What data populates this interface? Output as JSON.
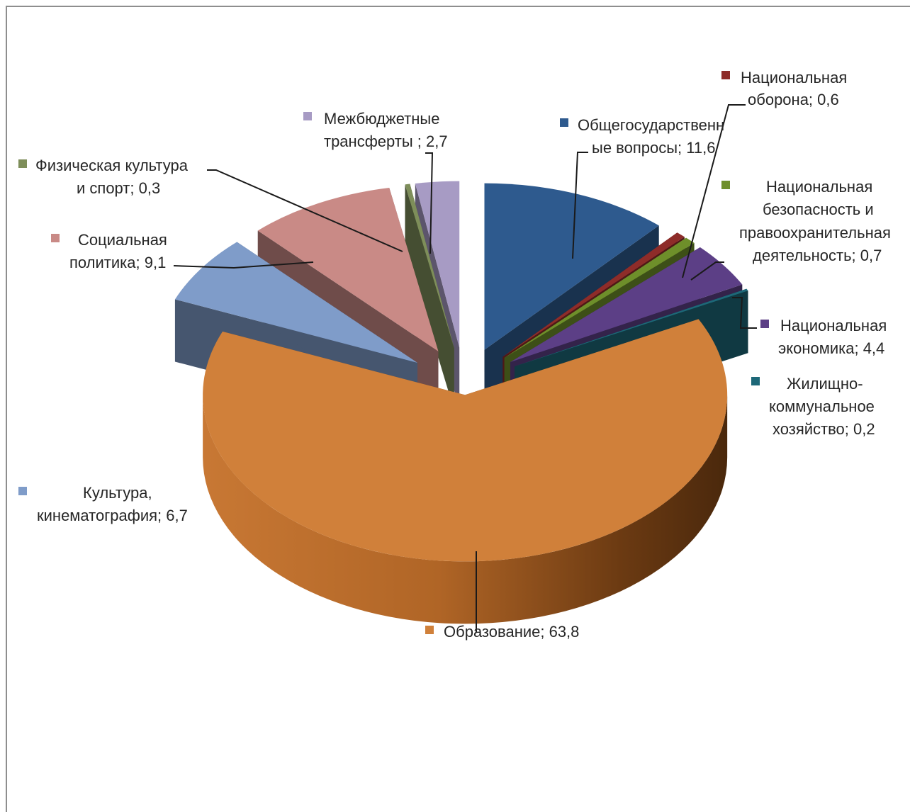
{
  "chart_data": {
    "type": "pie",
    "style": "3d-exploded",
    "legend": "none",
    "data_labels": "category; value",
    "slices": [
      {
        "name": "Общегосударственные вопросы",
        "value": 11.6,
        "label_lines": [
          "Общегосударственн",
          "ые вопросы; 11,6"
        ],
        "color": "#2E5A8E"
      },
      {
        "name": "Национальная оборона",
        "value": 0.6,
        "label_lines": [
          "Национальная",
          "оборона; 0,6"
        ],
        "color": "#8E2C29"
      },
      {
        "name": "Национальная безопасность и правоохранительная деятельность",
        "value": 0.7,
        "label_lines": [
          "Национальная",
          "безопасность и",
          "правоохранительная",
          "деятельность; 0,7"
        ],
        "color": "#6E8F2A"
      },
      {
        "name": "Национальная экономика",
        "value": 4.4,
        "label_lines": [
          "Национальная",
          "экономика; 4,4"
        ],
        "color": "#5C3F86"
      },
      {
        "name": "Жилищно-коммунальное хозяйство",
        "value": 0.2,
        "label_lines": [
          "Жилищно-",
          "коммунальное",
          "хозяйство; 0,2"
        ],
        "color": "#1D6878"
      },
      {
        "name": "Образование",
        "value": 63.8,
        "label_lines": [
          "Образование; 63,8"
        ],
        "color": "#D0803A"
      },
      {
        "name": "Культура, кинематография",
        "value": 6.7,
        "label_lines": [
          "Культура,",
          "кинематография; 6,7"
        ],
        "color": "#7F9CC9"
      },
      {
        "name": "Социальная политика",
        "value": 9.1,
        "label_lines": [
          "Социальная",
          "политика; 9,1"
        ],
        "color": "#C98A86"
      },
      {
        "name": "Физическая культура и спорт",
        "value": 0.3,
        "label_lines": [
          "Физическая культура",
          "и спорт; 0,3"
        ],
        "color": "#7E8E5A"
      },
      {
        "name": "Межбюджетные трансферты",
        "value": 2.7,
        "label_lines": [
          "Межбюджетные",
          "трансферты ; 2,7"
        ],
        "color": "#A79BC4"
      }
    ]
  }
}
